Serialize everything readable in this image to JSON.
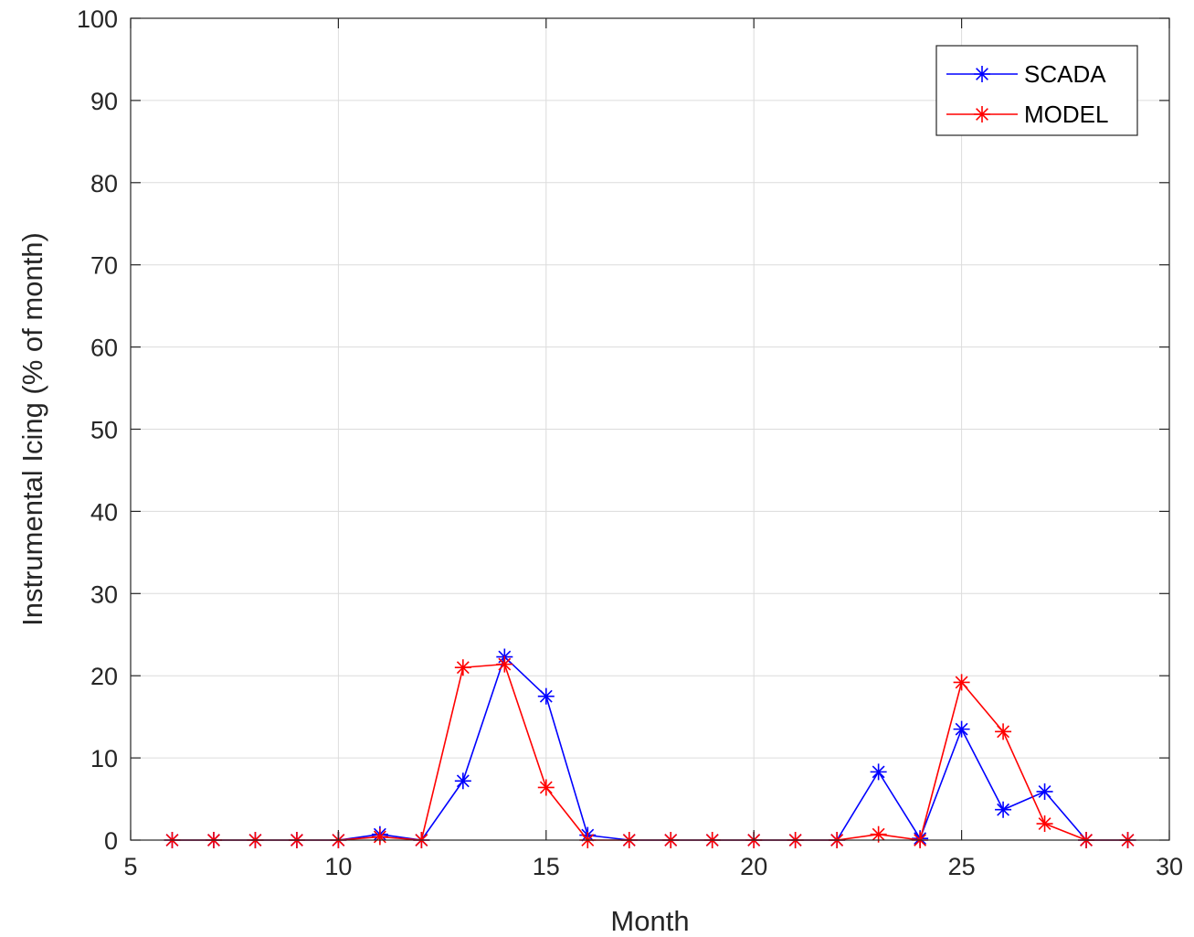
{
  "chart_data": {
    "type": "line",
    "title": "",
    "xlabel": "Month",
    "ylabel": "Instrumental Icing (% of month)",
    "xlim": [
      5,
      30
    ],
    "ylim": [
      0,
      100
    ],
    "xticks": [
      "5",
      "10",
      "15",
      "20",
      "25",
      "30"
    ],
    "yticks": [
      "0",
      "10",
      "20",
      "30",
      "40",
      "50",
      "60",
      "70",
      "80",
      "90",
      "100"
    ],
    "grid": true,
    "legend_position": "top-right",
    "marker": "asterisk",
    "x": [
      6,
      7,
      8,
      9,
      10,
      11,
      12,
      13,
      14,
      15,
      16,
      17,
      18,
      19,
      20,
      21,
      22,
      23,
      24,
      25,
      26,
      27,
      28,
      29
    ],
    "series": [
      {
        "name": "SCADA",
        "color": "#0000ff",
        "values": [
          0,
          0,
          0,
          0,
          0,
          0.7,
          0,
          7.2,
          22.3,
          17.5,
          0.6,
          0,
          0,
          0,
          0,
          0,
          0,
          8.3,
          0.2,
          13.5,
          3.7,
          5.9,
          0,
          0
        ]
      },
      {
        "name": "MODEL",
        "color": "#ff0000",
        "values": [
          0,
          0,
          0,
          0,
          0,
          0.4,
          0,
          21.0,
          21.4,
          6.4,
          0,
          0,
          0,
          0,
          0,
          0,
          0,
          0.7,
          0,
          19.2,
          13.2,
          2.0,
          0,
          0
        ]
      }
    ]
  }
}
